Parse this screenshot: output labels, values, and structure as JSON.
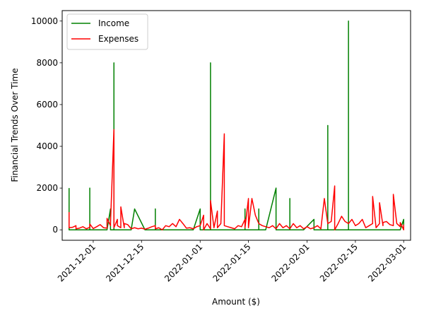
{
  "chart_data": {
    "type": "line",
    "title": "",
    "xlabel": "Amount ($)",
    "ylabel": "Financial Trends Over Time",
    "x_type": "date",
    "xlim": [
      "2021-11-22",
      "2022-03-03"
    ],
    "ylim": [
      -500,
      10500
    ],
    "x_ticks": [
      "2021-12-01",
      "2021-12-15",
      "2022-01-01",
      "2022-01-15",
      "2022-02-01",
      "2022-02-15",
      "2022-03-01"
    ],
    "y_ticks": [
      0,
      2000,
      4000,
      6000,
      8000,
      10000
    ],
    "grid": false,
    "legend": {
      "position": "top-left",
      "entries": [
        "Income",
        "Expenses"
      ]
    },
    "series": [
      {
        "name": "Income",
        "color": "#008000",
        "points": [
          [
            "2021-11-24",
            2000
          ],
          [
            "2021-11-24",
            0
          ],
          [
            "2021-11-30",
            0
          ],
          [
            "2021-11-30",
            2000
          ],
          [
            "2021-11-30",
            0
          ],
          [
            "2021-12-05",
            0
          ],
          [
            "2021-12-06",
            1000
          ],
          [
            "2021-12-06",
            0
          ],
          [
            "2021-12-07",
            0
          ],
          [
            "2021-12-07",
            8000
          ],
          [
            "2021-12-07",
            0
          ],
          [
            "2021-12-12",
            0
          ],
          [
            "2021-12-13",
            1000
          ],
          [
            "2021-12-16",
            0
          ],
          [
            "2021-12-19",
            0
          ],
          [
            "2021-12-19",
            1000
          ],
          [
            "2021-12-19",
            0
          ],
          [
            "2021-12-30",
            0
          ],
          [
            "2022-01-01",
            1000
          ],
          [
            "2022-01-01",
            0
          ],
          [
            "2022-01-04",
            0
          ],
          [
            "2022-01-04",
            8000
          ],
          [
            "2022-01-04",
            0
          ],
          [
            "2022-01-14",
            0
          ],
          [
            "2022-01-14",
            1000
          ],
          [
            "2022-01-14",
            0
          ],
          [
            "2022-01-18",
            0
          ],
          [
            "2022-01-18",
            1000
          ],
          [
            "2022-01-18",
            0
          ],
          [
            "2022-01-20",
            0
          ],
          [
            "2022-01-23",
            2000
          ],
          [
            "2022-01-23",
            0
          ],
          [
            "2022-01-27",
            0
          ],
          [
            "2022-01-27",
            1500
          ],
          [
            "2022-01-27",
            0
          ],
          [
            "2022-01-31",
            0
          ],
          [
            "2022-02-03",
            500
          ],
          [
            "2022-02-03",
            0
          ],
          [
            "2022-02-07",
            0
          ],
          [
            "2022-02-07",
            5000
          ],
          [
            "2022-02-07",
            0
          ],
          [
            "2022-02-13",
            0
          ],
          [
            "2022-02-13",
            10000
          ],
          [
            "2022-02-13",
            0
          ],
          [
            "2022-02-28",
            0
          ],
          [
            "2022-03-01",
            500
          ],
          [
            "2022-03-01",
            0
          ]
        ]
      },
      {
        "name": "Expenses",
        "color": "#ff0000",
        "points": [
          [
            "2021-11-24",
            850
          ],
          [
            "2021-11-24",
            100
          ],
          [
            "2021-11-25",
            120
          ],
          [
            "2021-11-26",
            200
          ],
          [
            "2021-11-26",
            50
          ],
          [
            "2021-11-27",
            80
          ],
          [
            "2021-11-28",
            150
          ],
          [
            "2021-11-29",
            50
          ],
          [
            "2021-11-30",
            120
          ],
          [
            "2021-11-30",
            280
          ],
          [
            "2021-12-01",
            60
          ],
          [
            "2021-12-02",
            150
          ],
          [
            "2021-12-03",
            250
          ],
          [
            "2021-12-04",
            100
          ],
          [
            "2021-12-05",
            80
          ],
          [
            "2021-12-05",
            550
          ],
          [
            "2021-12-06",
            200
          ],
          [
            "2021-12-06",
            300
          ],
          [
            "2021-12-07",
            4800
          ],
          [
            "2021-12-07",
            100
          ],
          [
            "2021-12-08",
            500
          ],
          [
            "2021-12-08",
            200
          ],
          [
            "2021-12-09",
            100
          ],
          [
            "2021-12-09",
            1100
          ],
          [
            "2021-12-10",
            100
          ],
          [
            "2021-12-10",
            300
          ],
          [
            "2021-12-11",
            250
          ],
          [
            "2021-12-12",
            50
          ],
          [
            "2021-12-13",
            100
          ],
          [
            "2021-12-14",
            50
          ],
          [
            "2021-12-15",
            80
          ],
          [
            "2021-12-16",
            30
          ],
          [
            "2021-12-17",
            80
          ],
          [
            "2021-12-18",
            150
          ],
          [
            "2021-12-19",
            200
          ],
          [
            "2021-12-19",
            50
          ],
          [
            "2021-12-20",
            100
          ],
          [
            "2021-12-21",
            0
          ],
          [
            "2021-12-22",
            200
          ],
          [
            "2021-12-23",
            150
          ],
          [
            "2021-12-24",
            300
          ],
          [
            "2021-12-25",
            150
          ],
          [
            "2021-12-26",
            500
          ],
          [
            "2021-12-27",
            300
          ],
          [
            "2021-12-28",
            80
          ],
          [
            "2021-12-29",
            100
          ],
          [
            "2021-12-30",
            50
          ],
          [
            "2021-12-31",
            150
          ],
          [
            "2022-01-01",
            200
          ],
          [
            "2022-01-02",
            700
          ],
          [
            "2022-01-02",
            0
          ],
          [
            "2022-01-03",
            300
          ],
          [
            "2022-01-04",
            50
          ],
          [
            "2022-01-04",
            1400
          ],
          [
            "2022-01-05",
            100
          ],
          [
            "2022-01-06",
            900
          ],
          [
            "2022-01-06",
            100
          ],
          [
            "2022-01-07",
            300
          ],
          [
            "2022-01-08",
            4600
          ],
          [
            "2022-01-08",
            200
          ],
          [
            "2022-01-09",
            150
          ],
          [
            "2022-01-10",
            100
          ],
          [
            "2022-01-11",
            50
          ],
          [
            "2022-01-12",
            200
          ],
          [
            "2022-01-13",
            150
          ],
          [
            "2022-01-14",
            500
          ],
          [
            "2022-01-14",
            100
          ],
          [
            "2022-01-15",
            1500
          ],
          [
            "2022-01-15",
            100
          ],
          [
            "2022-01-16",
            1500
          ],
          [
            "2022-01-17",
            700
          ],
          [
            "2022-01-18",
            300
          ],
          [
            "2022-01-19",
            200
          ],
          [
            "2022-01-20",
            150
          ],
          [
            "2022-01-21",
            100
          ],
          [
            "2022-01-22",
            200
          ],
          [
            "2022-01-23",
            50
          ],
          [
            "2022-01-24",
            300
          ],
          [
            "2022-01-25",
            100
          ],
          [
            "2022-01-26",
            200
          ],
          [
            "2022-01-27",
            50
          ],
          [
            "2022-01-28",
            300
          ],
          [
            "2022-01-29",
            100
          ],
          [
            "2022-01-30",
            200
          ],
          [
            "2022-01-31",
            50
          ],
          [
            "2022-02-01",
            150
          ],
          [
            "2022-02-02",
            50
          ],
          [
            "2022-02-03",
            100
          ],
          [
            "2022-02-04",
            200
          ],
          [
            "2022-02-05",
            50
          ],
          [
            "2022-02-06",
            1500
          ],
          [
            "2022-02-07",
            300
          ],
          [
            "2022-02-08",
            400
          ],
          [
            "2022-02-09",
            2100
          ],
          [
            "2022-02-09",
            0
          ],
          [
            "2022-02-10",
            300
          ],
          [
            "2022-02-11",
            650
          ],
          [
            "2022-02-12",
            400
          ],
          [
            "2022-02-13",
            300
          ],
          [
            "2022-02-14",
            500
          ],
          [
            "2022-02-15",
            200
          ],
          [
            "2022-02-16",
            300
          ],
          [
            "2022-02-17",
            500
          ],
          [
            "2022-02-18",
            100
          ],
          [
            "2022-02-19",
            200
          ],
          [
            "2022-02-20",
            300
          ],
          [
            "2022-02-20",
            1600
          ],
          [
            "2022-02-21",
            100
          ],
          [
            "2022-02-22",
            300
          ],
          [
            "2022-02-22",
            1300
          ],
          [
            "2022-02-23",
            200
          ],
          [
            "2022-02-23",
            350
          ],
          [
            "2022-02-24",
            400
          ],
          [
            "2022-02-25",
            250
          ],
          [
            "2022-02-26",
            200
          ],
          [
            "2022-02-26",
            1700
          ],
          [
            "2022-02-27",
            300
          ],
          [
            "2022-02-28",
            150
          ],
          [
            "2022-02-28",
            350
          ],
          [
            "2022-03-01",
            0
          ],
          [
            "2022-03-01",
            250
          ]
        ]
      }
    ]
  }
}
